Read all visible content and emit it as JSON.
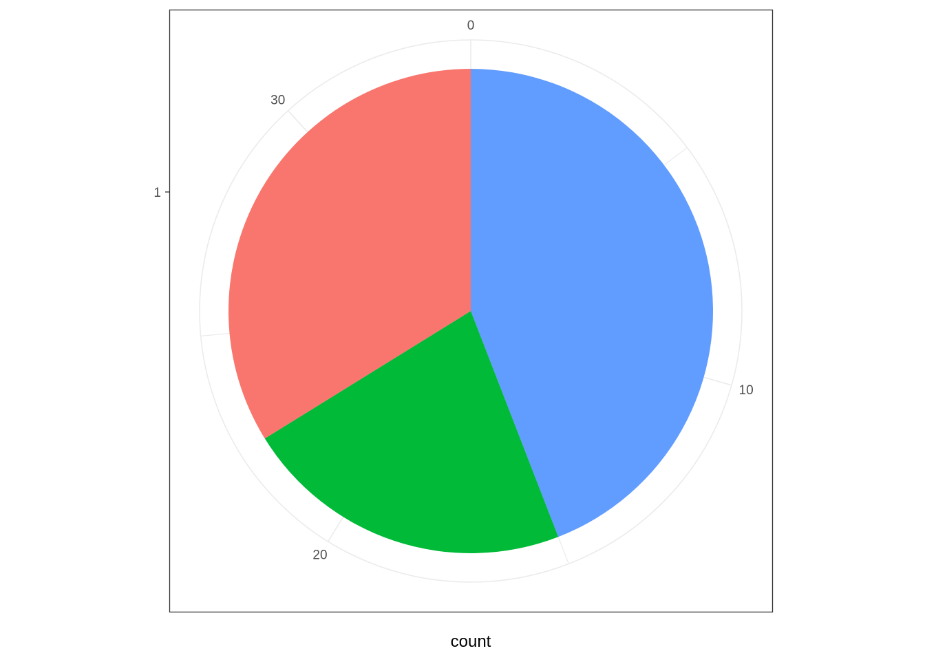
{
  "chart_data": {
    "type": "pie",
    "coord": "polar",
    "title": "",
    "xlabel": "count",
    "ylabel": "",
    "y_axis_ticks": [
      "1"
    ],
    "theta_range": [
      0,
      34
    ],
    "theta_ticks": [
      0,
      10,
      20,
      30
    ],
    "theta_tick_labels": [
      "0",
      "10",
      "20",
      "30"
    ],
    "grid": true,
    "legend": "none",
    "slices": [
      {
        "value": 15,
        "color": "#619CFF"
      },
      {
        "value": 7.5,
        "color": "#00BA38"
      },
      {
        "value": 11.5,
        "color": "#F8766D"
      }
    ],
    "colors": {
      "grid": "#EBEBEB",
      "panel_border": "#333333",
      "tick_text": "#4D4D4D",
      "axis_title": "#000000"
    }
  }
}
